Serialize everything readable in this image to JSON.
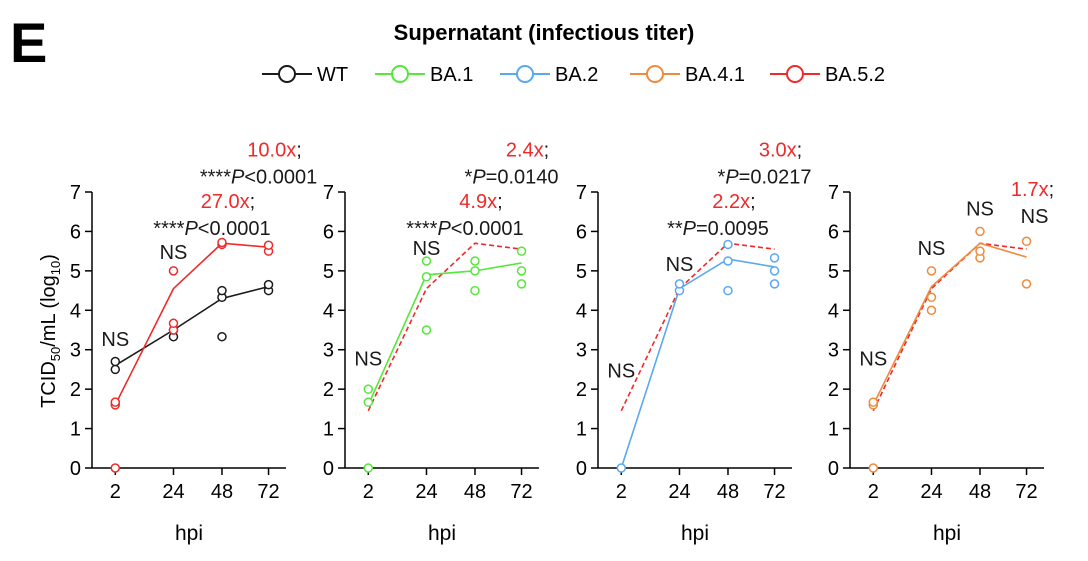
{
  "panel_letter": "E",
  "figure_title": "Supernatant (infectious titer)",
  "ylabel": {
    "main": "TCID",
    "sub1": "50",
    "mid": "/mL (log",
    "sub2": "10",
    "end": ")"
  },
  "xlabel": "hpi",
  "colors": {
    "WT": "#1a1a1a",
    "BA.1": "#55e83a",
    "BA.2": "#5aa8f0",
    "BA.4.1": "#f08a3c",
    "BA.5.2": "#ee2a2a",
    "annot_red": "#ee2a2a",
    "annot_black": "#1a1a1a"
  },
  "legend": [
    {
      "name": "WT",
      "color": "#1a1a1a"
    },
    {
      "name": "BA.1",
      "color": "#55e83a"
    },
    {
      "name": "BA.2",
      "color": "#5aa8f0"
    },
    {
      "name": "BA.4.1",
      "color": "#f08a3c"
    },
    {
      "name": "BA.5.2",
      "color": "#ee2a2a"
    }
  ],
  "chart_data": [
    {
      "type": "line",
      "xlabel": "hpi",
      "categories": [
        "2",
        "24",
        "48",
        "72"
      ],
      "ylim": [
        0,
        7
      ],
      "yticks": [
        0,
        1,
        2,
        3,
        4,
        5,
        6,
        7
      ],
      "grid": false,
      "series": [
        {
          "name": "WT",
          "style": "solid",
          "means": [
            2.6,
            3.5,
            4.3,
            4.6
          ],
          "points": [
            [
              2,
              2.5
            ],
            [
              2,
              2.7
            ],
            [
              24,
              3.33
            ],
            [
              24,
              3.5
            ],
            [
              48,
              3.33
            ],
            [
              48,
              4.33
            ],
            [
              48,
              4.5
            ],
            [
              72,
              4.5
            ],
            [
              72,
              4.65
            ]
          ]
        },
        {
          "name": "BA.5.2",
          "style": "solid",
          "means": [
            1.6,
            4.55,
            5.7,
            5.6
          ],
          "points": [
            [
              2,
              0
            ],
            [
              2,
              1.6
            ],
            [
              2,
              1.67
            ],
            [
              24,
              3.5
            ],
            [
              24,
              3.67
            ],
            [
              24,
              5.0
            ],
            [
              48,
              5.67
            ],
            [
              48,
              5.72
            ],
            [
              72,
              5.5
            ],
            [
              72,
              5.65
            ]
          ]
        }
      ],
      "annotations": [
        {
          "text": "NS",
          "at": [
            2,
            3.1
          ]
        },
        {
          "text": "NS",
          "at": [
            24,
            5.3
          ]
        },
        {
          "red": "27.0x",
          "black": ";",
          "line2": [
            "****",
            "P",
            "<0.0001"
          ],
          "at": [
            48,
            6.6
          ]
        },
        {
          "red": "10.0x",
          "black": ";",
          "line2": [
            "****",
            "P",
            "<0.0001"
          ],
          "at": [
            72,
            7.9
          ]
        }
      ]
    },
    {
      "type": "line",
      "xlabel": "hpi",
      "categories": [
        "2",
        "24",
        "48",
        "72"
      ],
      "ylim": [
        0,
        7
      ],
      "yticks": [
        0,
        1,
        2,
        3,
        4,
        5,
        6,
        7
      ],
      "grid": false,
      "series": [
        {
          "name": "BA.1",
          "style": "solid",
          "means": [
            1.6,
            4.9,
            5.0,
            5.2
          ],
          "points": [
            [
              2,
              0
            ],
            [
              2,
              1.67
            ],
            [
              2,
              2.0
            ],
            [
              24,
              3.5
            ],
            [
              24,
              4.85
            ],
            [
              24,
              5.25
            ],
            [
              48,
              4.5
            ],
            [
              48,
              5.0
            ],
            [
              48,
              5.25
            ],
            [
              72,
              4.67
            ],
            [
              72,
              5.0
            ],
            [
              72,
              5.5
            ]
          ]
        },
        {
          "name": "BA.5.2",
          "style": "dashed",
          "means": [
            1.45,
            4.55,
            5.7,
            5.55
          ],
          "points": []
        }
      ],
      "annotations": [
        {
          "text": "NS",
          "at": [
            2,
            2.6
          ]
        },
        {
          "text": "NS",
          "at": [
            24,
            5.4
          ]
        },
        {
          "red": "4.9x",
          "black": ";",
          "line2": [
            "****",
            "P",
            "<0.0001"
          ],
          "at": [
            48,
            6.6
          ]
        },
        {
          "red": "2.4x",
          "black": ";",
          "line2": [
            "*",
            "P",
            "=0.0140"
          ],
          "at": [
            72,
            7.9
          ]
        }
      ]
    },
    {
      "type": "line",
      "xlabel": "hpi",
      "categories": [
        "2",
        "24",
        "48",
        "72"
      ],
      "ylim": [
        0,
        7
      ],
      "yticks": [
        0,
        1,
        2,
        3,
        4,
        5,
        6,
        7
      ],
      "grid": false,
      "series": [
        {
          "name": "BA.2",
          "style": "solid",
          "means": [
            0,
            4.55,
            5.3,
            5.1
          ],
          "points": [
            [
              2,
              0
            ],
            [
              24,
              4.5
            ],
            [
              24,
              4.67
            ],
            [
              48,
              4.5
            ],
            [
              48,
              5.25
            ],
            [
              48,
              5.67
            ],
            [
              72,
              4.67
            ],
            [
              72,
              5.0
            ],
            [
              72,
              5.33
            ]
          ]
        },
        {
          "name": "BA.5.2",
          "style": "dashed",
          "means": [
            1.45,
            4.55,
            5.7,
            5.55
          ],
          "points": []
        }
      ],
      "annotations": [
        {
          "text": "NS",
          "at": [
            2,
            2.3
          ]
        },
        {
          "text": "NS",
          "at": [
            24,
            5.0
          ]
        },
        {
          "red": "2.2x",
          "black": ";",
          "line2": [
            "**",
            "P",
            "=0.0095"
          ],
          "at": [
            48,
            6.6
          ]
        },
        {
          "red": "3.0x",
          "black": ";",
          "line2": [
            "*",
            "P",
            "=0.0217"
          ],
          "at": [
            72,
            7.9
          ]
        }
      ]
    },
    {
      "type": "line",
      "xlabel": "hpi",
      "categories": [
        "2",
        "24",
        "48",
        "72"
      ],
      "ylim": [
        0,
        7
      ],
      "yticks": [
        0,
        1,
        2,
        3,
        4,
        5,
        6,
        7
      ],
      "grid": false,
      "series": [
        {
          "name": "BA.4.1",
          "style": "solid",
          "means": [
            1.6,
            4.6,
            5.7,
            5.35
          ],
          "points": [
            [
              2,
              0
            ],
            [
              2,
              1.6
            ],
            [
              2,
              1.67
            ],
            [
              24,
              4.0
            ],
            [
              24,
              4.33
            ],
            [
              24,
              5.0
            ],
            [
              48,
              5.33
            ],
            [
              48,
              5.5
            ],
            [
              48,
              6.0
            ],
            [
              72,
              4.67
            ],
            [
              72,
              5.75
            ]
          ]
        },
        {
          "name": "BA.5.2",
          "style": "dashed",
          "means": [
            1.45,
            4.55,
            5.7,
            5.55
          ],
          "points": []
        }
      ],
      "annotations": [
        {
          "text": "NS",
          "at": [
            2,
            2.6
          ]
        },
        {
          "text": "NS",
          "at": [
            24,
            5.4
          ]
        },
        {
          "text": "NS",
          "at": [
            48,
            6.4
          ]
        },
        {
          "red": "1.7x",
          "black": ";",
          "line2": [
            "NS"
          ],
          "at": [
            72,
            6.9
          ]
        }
      ]
    }
  ]
}
